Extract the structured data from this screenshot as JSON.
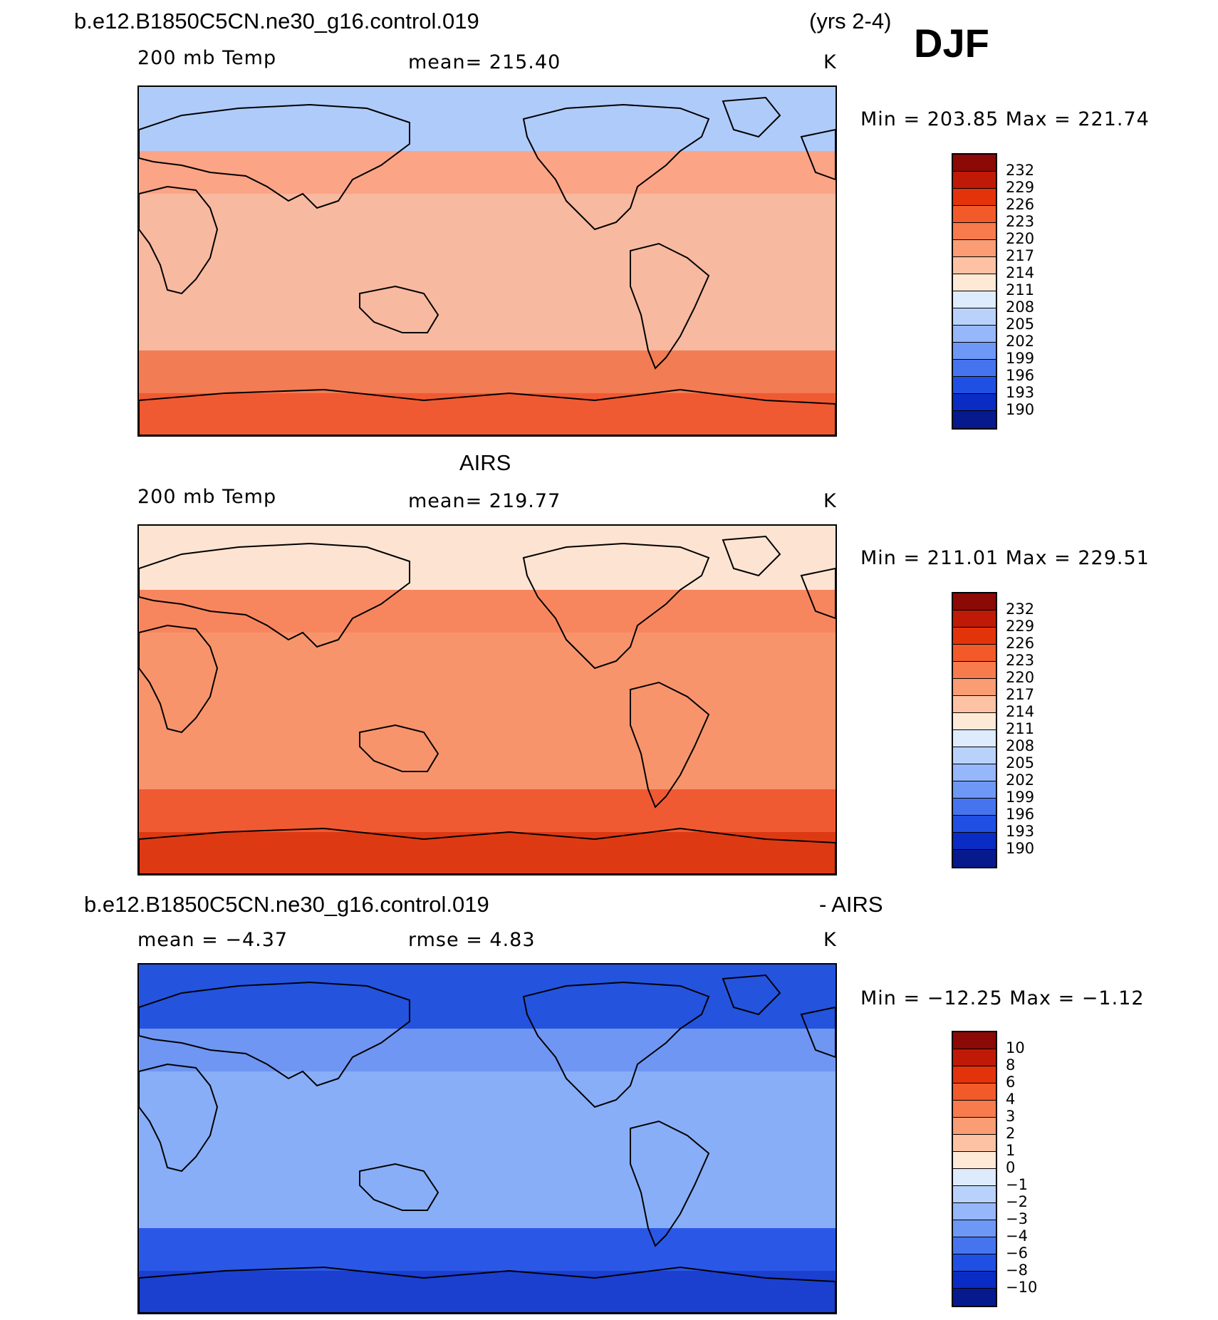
{
  "header": {
    "case_name": "b.e12.B1850C5CN.ne30_g16.control.019",
    "years": "(yrs 2-4)",
    "season": "DJF"
  },
  "panels": [
    {
      "id": "model",
      "title": "",
      "variable": "200 mb Temp",
      "stat": "mean=  215.40",
      "units": "K",
      "minmax": "Min  =  203.85  Max  =  221.74",
      "fill": "#FCA486",
      "band": {
        "north": "#AFCBFA",
        "mid": "#F7B9A0",
        "south": "#F27C54",
        "pole": "#F05A33"
      }
    },
    {
      "id": "obs",
      "title": "AIRS",
      "variable": "200 mb Temp",
      "stat": "mean=  219.77",
      "units": "K",
      "minmax": "Min  =  211.01  Max  =  229.51",
      "fill": "#F7865F",
      "band": {
        "north": "#FDE3D2",
        "mid": "#F7946C",
        "south": "#F05A33",
        "pole": "#DD3A14"
      }
    },
    {
      "id": "diff",
      "title_left": "b.e12.B1850C5CN.ne30_g16.control.019",
      "title_right": "- AIRS",
      "variable": "mean =    −4.37",
      "stat": "rmse =     4.83",
      "units": "K",
      "minmax": "Min  =  −12.25  Max  =   −1.12",
      "fill": "#6F96F2",
      "band": {
        "north": "#2453DE",
        "mid": "#88AEF7",
        "south": "#2B57E6",
        "pole": "#1B3FCF"
      }
    }
  ],
  "colorbars": [
    {
      "labels": [
        "232",
        "229",
        "226",
        "223",
        "220",
        "217",
        "214",
        "211",
        "208",
        "205",
        "202",
        "199",
        "196",
        "193",
        "190"
      ],
      "colors": [
        "#8B0A05",
        "#BF1A07",
        "#E3330B",
        "#F25A2A",
        "#F77B4D",
        "#FA9C74",
        "#FDC2A4",
        "#FEE9D6",
        "#DDEBFD",
        "#B9D2FC",
        "#96B7FA",
        "#6E98F5",
        "#4574EE",
        "#2050E3",
        "#0A2CC4",
        "#061A8E"
      ]
    },
    {
      "labels": [
        "232",
        "229",
        "226",
        "223",
        "220",
        "217",
        "214",
        "211",
        "208",
        "205",
        "202",
        "199",
        "196",
        "193",
        "190"
      ],
      "colors": [
        "#8B0A05",
        "#BF1A07",
        "#E3330B",
        "#F25A2A",
        "#F77B4D",
        "#FA9C74",
        "#FDC2A4",
        "#FEE9D6",
        "#DDEBFD",
        "#B9D2FC",
        "#96B7FA",
        "#6E98F5",
        "#4574EE",
        "#2050E3",
        "#0A2CC4",
        "#061A8E"
      ]
    },
    {
      "labels": [
        "10",
        "8",
        "6",
        "4",
        "3",
        "2",
        "1",
        "0",
        "−1",
        "−2",
        "−3",
        "−4",
        "−6",
        "−8",
        "−10"
      ],
      "colors": [
        "#8B0A05",
        "#BF1A07",
        "#E3330B",
        "#F25A2A",
        "#F77B4D",
        "#FA9C74",
        "#FDC2A4",
        "#FEE9D6",
        "#DDEBFD",
        "#B9D2FC",
        "#96B7FA",
        "#6E98F5",
        "#4574EE",
        "#2050E3",
        "#0A2CC4",
        "#061A8E"
      ]
    }
  ]
}
